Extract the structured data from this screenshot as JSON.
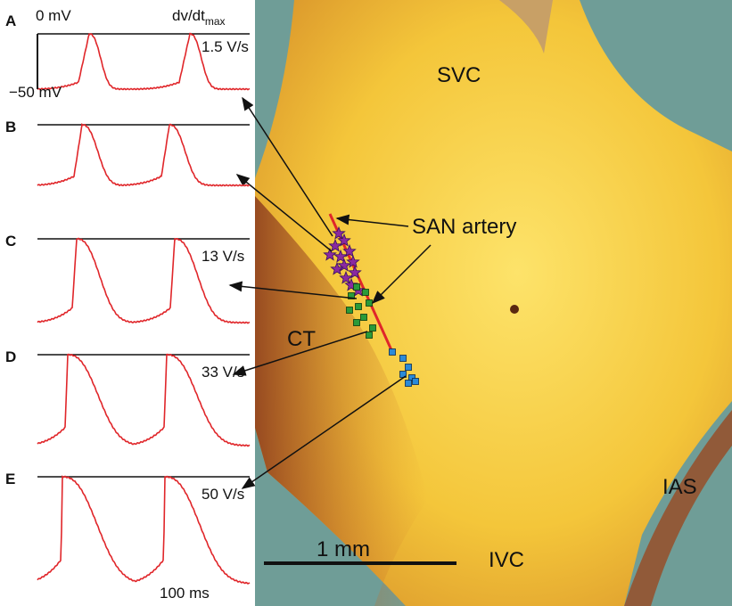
{
  "panels": [
    {
      "label": "A",
      "rate": "1.5 V/s"
    },
    {
      "label": "B"
    },
    {
      "label": "C",
      "rate": "13 V/s"
    },
    {
      "label": "D",
      "rate": "33 V/s"
    },
    {
      "label": "E",
      "rate": "50 V/s"
    }
  ],
  "voltage_top": "0 mV",
  "voltage_bottom": "−50 mV",
  "rate_title": "dv/dt",
  "rate_subscript": "max",
  "time_scale": "100 ms",
  "map": {
    "svc": "SVC",
    "san_artery": "SAN artery",
    "ct": "CT",
    "ias": "IAS",
    "ivc": "IVC",
    "scale_bar": "1 mm"
  }
}
